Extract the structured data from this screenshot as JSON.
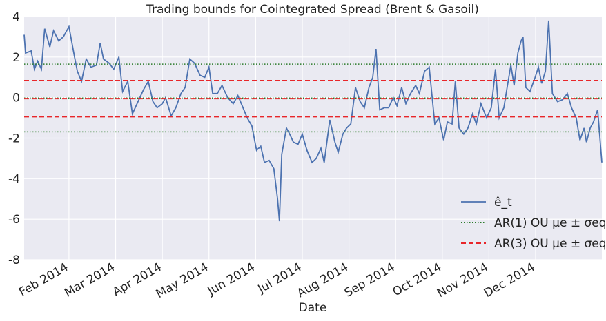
{
  "chart_data": {
    "type": "line",
    "title": "Trading bounds for Cointegrated Spread (Brent & Gasoil)",
    "x_label": "Date",
    "xlim": [
      0.04,
      12.42
    ],
    "xticks": [
      {
        "value": 1,
        "label": "Feb 2014"
      },
      {
        "value": 2,
        "label": "Mar 2014"
      },
      {
        "value": 3,
        "label": "Apr 2014"
      },
      {
        "value": 4,
        "label": "May 2014"
      },
      {
        "value": 5,
        "label": "Jun 2014"
      },
      {
        "value": 6,
        "label": "Jul 2014"
      },
      {
        "value": 7,
        "label": "Aug 2014"
      },
      {
        "value": 8,
        "label": "Sep 2014"
      },
      {
        "value": 9,
        "label": "Oct 2014"
      },
      {
        "value": 10,
        "label": "Nov 2014"
      },
      {
        "value": 11,
        "label": "Dec 2014"
      }
    ],
    "ylim": [
      -8,
      4
    ],
    "yticks": [
      -8,
      -6,
      -4,
      -2,
      0,
      2,
      4
    ],
    "grid": true,
    "legend": "lower right",
    "series": [
      {
        "name": "ê_t",
        "color": "#4c72b0",
        "x": [
          0.04,
          0.07,
          0.19,
          0.26,
          0.33,
          0.41,
          0.48,
          0.59,
          0.67,
          0.78,
          0.88,
          1.0,
          1.12,
          1.18,
          1.27,
          1.37,
          1.47,
          1.59,
          1.67,
          1.74,
          1.86,
          1.96,
          2.07,
          2.15,
          2.26,
          2.36,
          2.48,
          2.6,
          2.7,
          2.8,
          2.89,
          3.0,
          3.07,
          3.19,
          3.29,
          3.4,
          3.49,
          3.59,
          3.69,
          3.81,
          3.91,
          4.0,
          4.08,
          4.18,
          4.28,
          4.4,
          4.52,
          4.62,
          4.73,
          4.82,
          4.92,
          5.02,
          5.11,
          5.19,
          5.29,
          5.39,
          5.47,
          5.51,
          5.56,
          5.66,
          5.73,
          5.81,
          5.91,
          6.0,
          6.1,
          6.21,
          6.3,
          6.4,
          6.47,
          6.59,
          6.7,
          6.77,
          6.87,
          6.95,
          7.04,
          7.14,
          7.24,
          7.33,
          7.43,
          7.51,
          7.58,
          7.66,
          7.76,
          7.85,
          7.95,
          8.03,
          8.13,
          8.22,
          8.32,
          8.43,
          8.51,
          8.62,
          8.72,
          8.84,
          8.93,
          9.03,
          9.11,
          9.21,
          9.28,
          9.36,
          9.46,
          9.55,
          9.65,
          9.73,
          9.83,
          9.95,
          10.05,
          10.14,
          10.22,
          10.32,
          10.39,
          10.47,
          10.54,
          10.62,
          10.69,
          10.73,
          10.79,
          10.88,
          10.99,
          11.06,
          11.13,
          11.21,
          11.28,
          11.36,
          11.47,
          11.58,
          11.68,
          11.77,
          11.87,
          11.95,
          12.04,
          12.09,
          12.17,
          12.24,
          12.33,
          12.42
        ],
        "values": [
          3.1,
          2.2,
          2.3,
          1.4,
          1.8,
          1.4,
          3.4,
          2.5,
          3.3,
          2.8,
          3.0,
          3.5,
          2.0,
          1.3,
          0.8,
          1.9,
          1.5,
          1.6,
          2.7,
          1.9,
          1.7,
          1.4,
          2.0,
          0.3,
          0.8,
          -0.8,
          -0.2,
          0.4,
          0.8,
          -0.2,
          -0.5,
          -0.3,
          0.0,
          -0.9,
          -0.5,
          0.2,
          0.5,
          1.9,
          1.7,
          1.1,
          1.0,
          1.5,
          0.2,
          0.2,
          0.6,
          0.0,
          -0.3,
          0.1,
          -0.5,
          -1.0,
          -1.4,
          -2.6,
          -2.4,
          -3.2,
          -3.1,
          -3.5,
          -5.0,
          -6.1,
          -2.8,
          -1.5,
          -1.8,
          -2.2,
          -2.3,
          -1.8,
          -2.6,
          -3.2,
          -3.0,
          -2.5,
          -3.2,
          -1.1,
          -2.2,
          -2.7,
          -1.8,
          -1.5,
          -1.3,
          0.5,
          -0.2,
          -0.5,
          0.5,
          1.0,
          2.4,
          -0.6,
          -0.5,
          -0.5,
          0.0,
          -0.4,
          0.5,
          -0.3,
          0.2,
          0.6,
          0.2,
          1.3,
          1.5,
          -1.3,
          -1.0,
          -2.1,
          -1.2,
          -1.3,
          0.8,
          -1.5,
          -1.8,
          -1.5,
          -0.8,
          -1.3,
          -0.3,
          -1.0,
          -0.5,
          1.4,
          -1.0,
          -0.5,
          0.5,
          1.6,
          0.6,
          2.2,
          2.8,
          3.0,
          0.5,
          0.3,
          1.0,
          1.5,
          0.7,
          1.3,
          3.8,
          0.2,
          -0.2,
          -0.1,
          0.2,
          -0.5,
          -1.0,
          -2.1,
          -1.5,
          -2.2,
          -1.5,
          -1.2,
          -0.6,
          -3.2
        ]
      },
      {
        "name": "AR(1) OU μe ± σeq",
        "color": "#2a7a2a",
        "style": "dotted",
        "levels": [
          1.65,
          -0.02,
          -1.69
        ]
      },
      {
        "name": "AR(3) OU μe ± σeq",
        "color": "#e8262a",
        "style": "dashed",
        "levels": [
          0.84,
          -0.05,
          -0.94
        ]
      }
    ]
  }
}
